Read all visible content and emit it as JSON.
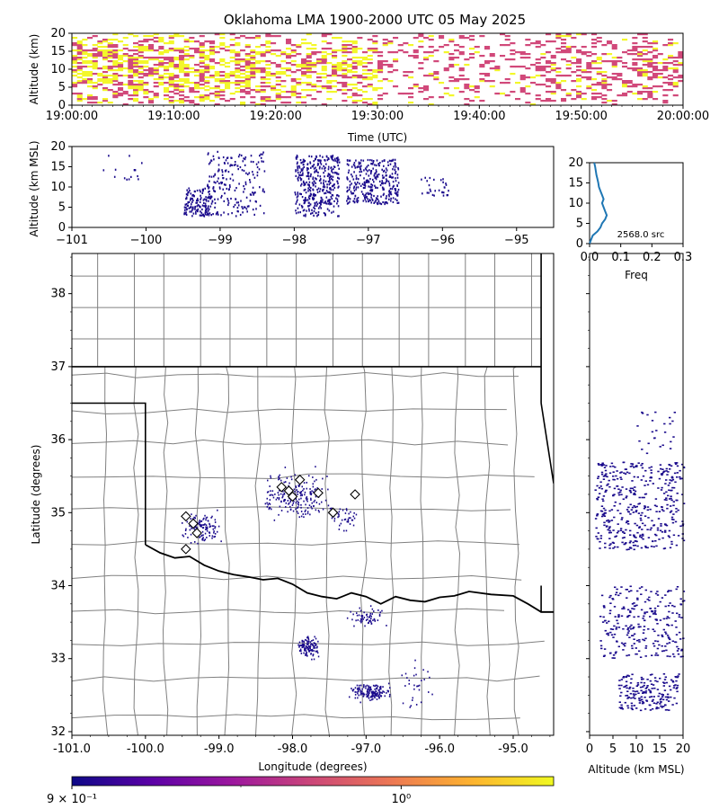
{
  "title": "Oklahoma LMA 1900-2000 UTC 05 May 2025",
  "colors": {
    "source_dot": "#1a0a8c",
    "histogram_line": "#1f77b4",
    "state_border": "#000000",
    "county_border": "#808080",
    "time_panel_low": "#d1497a",
    "time_panel_high": "#f3f72a",
    "colormap": [
      "#0d0887",
      "#5c01a6",
      "#9c179e",
      "#cc4778",
      "#ed7953",
      "#fdb42f",
      "#f0f921"
    ]
  },
  "chart_data": [
    {
      "id": "altitude_vs_time",
      "type": "heatmap",
      "xlabel": "Time (UTC)",
      "ylabel": "Altitude (km)",
      "x_range": [
        "19:00:00",
        "20:00:00"
      ],
      "ylim": [
        0,
        20
      ],
      "x_ticks": [
        "19:00:00",
        "19:10:00",
        "19:20:00",
        "19:30:00",
        "19:40:00",
        "19:50:00",
        "20:00:00"
      ],
      "y_ticks": [
        "0",
        "5",
        "10",
        "15",
        "20"
      ],
      "color_scale": "plasma (log)"
    },
    {
      "id": "altitude_vs_longitude",
      "type": "scatter",
      "ylabel": "Altitude (km MSL)",
      "xlim": [
        -101,
        -94.5
      ],
      "ylim": [
        0,
        20
      ],
      "x_ticks": [
        "−101",
        "−100",
        "−99",
        "−98",
        "−97",
        "−96",
        "−95"
      ],
      "y_ticks": [
        "0",
        "5",
        "10",
        "15",
        "20"
      ],
      "clusters": [
        {
          "lon": [
            -99.5,
            -99.1
          ],
          "alt": [
            3,
            10
          ],
          "n": 140
        },
        {
          "lon": [
            -99.2,
            -98.4
          ],
          "alt": [
            3,
            19
          ],
          "n": 200
        },
        {
          "lon": [
            -98.0,
            -97.4
          ],
          "alt": [
            3,
            18
          ],
          "n": 380
        },
        {
          "lon": [
            -97.3,
            -96.6
          ],
          "alt": [
            6,
            17
          ],
          "n": 320
        },
        {
          "lon": [
            -96.3,
            -95.9
          ],
          "alt": [
            8,
            13
          ],
          "n": 30
        }
      ]
    },
    {
      "id": "altitude_histogram",
      "type": "line",
      "xlabel": "Freq",
      "annotation": "2568.0 src",
      "xlim": [
        0,
        0.3
      ],
      "ylim": [
        0,
        20
      ],
      "x_ticks": [
        "0.0",
        "0.1",
        "0.2",
        "0.3"
      ],
      "y_ticks": [
        "0",
        "5",
        "10",
        "15",
        "20"
      ],
      "freq": [
        0.0,
        0.005,
        0.01,
        0.025,
        0.035,
        0.04,
        0.05,
        0.055,
        0.05,
        0.045,
        0.04,
        0.045,
        0.04,
        0.035,
        0.03,
        0.028,
        0.025,
        0.022,
        0.02,
        0.018,
        0.015
      ],
      "alt": [
        0,
        1,
        2,
        3,
        4,
        5,
        6,
        7,
        8,
        9,
        10,
        11,
        12,
        13,
        14,
        15,
        16,
        17,
        18,
        19,
        20
      ]
    },
    {
      "id": "plan_view",
      "type": "scatter",
      "xlabel": "Longitude (degrees)",
      "ylabel": "Latitude (degrees)",
      "xlim": [
        -101.0,
        -94.45
      ],
      "ylim": [
        31.95,
        38.55
      ],
      "x_ticks": [
        "-101.0",
        "-100.0",
        "-99.0",
        "-98.0",
        "-97.0",
        "-96.0",
        "-95.0"
      ],
      "y_ticks": [
        "32",
        "33",
        "34",
        "35",
        "36",
        "37",
        "38"
      ],
      "stations": [
        {
          "lon": -99.45,
          "lat": 34.95
        },
        {
          "lon": -99.35,
          "lat": 34.85
        },
        {
          "lon": -99.3,
          "lat": 34.72
        },
        {
          "lon": -99.45,
          "lat": 34.5
        },
        {
          "lon": -98.15,
          "lat": 35.35
        },
        {
          "lon": -98.05,
          "lat": 35.3
        },
        {
          "lon": -98.0,
          "lat": 35.22
        },
        {
          "lon": -97.9,
          "lat": 35.45
        },
        {
          "lon": -97.65,
          "lat": 35.27
        },
        {
          "lon": -97.45,
          "lat": 35.0
        },
        {
          "lon": -97.15,
          "lat": 35.25
        }
      ],
      "clusters": [
        {
          "lon": [
            -99.6,
            -98.9
          ],
          "lat": [
            34.5,
            35.1
          ],
          "n": 130
        },
        {
          "lon": [
            -98.6,
            -97.3
          ],
          "lat": [
            34.8,
            35.7
          ],
          "n": 220
        },
        {
          "lon": [
            -97.6,
            -97.0
          ],
          "lat": [
            34.7,
            35.2
          ],
          "n": 40
        },
        {
          "lon": [
            -98.0,
            -97.6
          ],
          "lat": [
            32.95,
            33.4
          ],
          "n": 120
        },
        {
          "lon": [
            -97.3,
            -96.7
          ],
          "lat": [
            33.4,
            33.75
          ],
          "n": 60
        },
        {
          "lon": [
            -97.3,
            -96.6
          ],
          "lat": [
            32.4,
            32.7
          ],
          "n": 160
        },
        {
          "lon": [
            -96.7,
            -96.0
          ],
          "lat": [
            32.1,
            33.3
          ],
          "n": 30
        }
      ]
    },
    {
      "id": "latitude_vs_altitude",
      "type": "scatter",
      "xlabel": "Altitude (km MSL)",
      "xlim": [
        0,
        20
      ],
      "ylim": [
        31.95,
        38.55
      ],
      "x_ticks": [
        "0",
        "5",
        "10",
        "15",
        "20"
      ],
      "clusters": [
        {
          "alt": [
            1,
            20
          ],
          "lat": [
            34.5,
            35.7
          ],
          "n": 420
        },
        {
          "alt": [
            2,
            20
          ],
          "lat": [
            33.0,
            34.0
          ],
          "n": 260
        },
        {
          "alt": [
            6,
            19
          ],
          "lat": [
            32.3,
            32.8
          ],
          "n": 180
        },
        {
          "alt": [
            10,
            18
          ],
          "lat": [
            35.8,
            36.4
          ],
          "n": 25
        }
      ]
    },
    {
      "id": "colorbar",
      "type": "heatmap",
      "scale": "log",
      "tick_labels": [
        "9 × 10⁻¹",
        "10⁰"
      ],
      "tick_values": [
        0.9,
        1.0
      ],
      "range": [
        0.9,
        1.05
      ]
    }
  ],
  "state_borders": [
    [
      [
        -101.0,
        37.0
      ],
      [
        -94.62,
        37.0
      ]
    ],
    [
      [
        -94.62,
        38.55
      ],
      [
        -94.62,
        36.5
      ]
    ],
    [
      [
        -101.0,
        36.5
      ],
      [
        -100.0,
        36.5
      ],
      [
        -100.0,
        34.56
      ]
    ],
    [
      [
        -94.62,
        36.5
      ],
      [
        -94.45,
        35.4
      ]
    ],
    [
      [
        -94.45,
        33.64
      ],
      [
        -94.62,
        33.64
      ],
      [
        -94.62,
        34.0
      ]
    ]
  ],
  "red_river": [
    [
      -100.0,
      34.56
    ],
    [
      -99.8,
      34.45
    ],
    [
      -99.6,
      34.38
    ],
    [
      -99.4,
      34.4
    ],
    [
      -99.2,
      34.28
    ],
    [
      -99.0,
      34.2
    ],
    [
      -98.8,
      34.15
    ],
    [
      -98.6,
      34.12
    ],
    [
      -98.4,
      34.08
    ],
    [
      -98.2,
      34.1
    ],
    [
      -98.0,
      34.02
    ],
    [
      -97.8,
      33.9
    ],
    [
      -97.6,
      33.85
    ],
    [
      -97.4,
      33.82
    ],
    [
      -97.2,
      33.9
    ],
    [
      -97.0,
      33.85
    ],
    [
      -96.8,
      33.75
    ],
    [
      -96.6,
      33.85
    ],
    [
      -96.4,
      33.8
    ],
    [
      -96.2,
      33.78
    ],
    [
      -96.0,
      33.84
    ],
    [
      -95.8,
      33.86
    ],
    [
      -95.6,
      33.92
    ],
    [
      -95.3,
      33.88
    ],
    [
      -95.0,
      33.86
    ],
    [
      -94.8,
      33.75
    ],
    [
      -94.62,
      33.64
    ],
    [
      -94.45,
      33.64
    ]
  ]
}
